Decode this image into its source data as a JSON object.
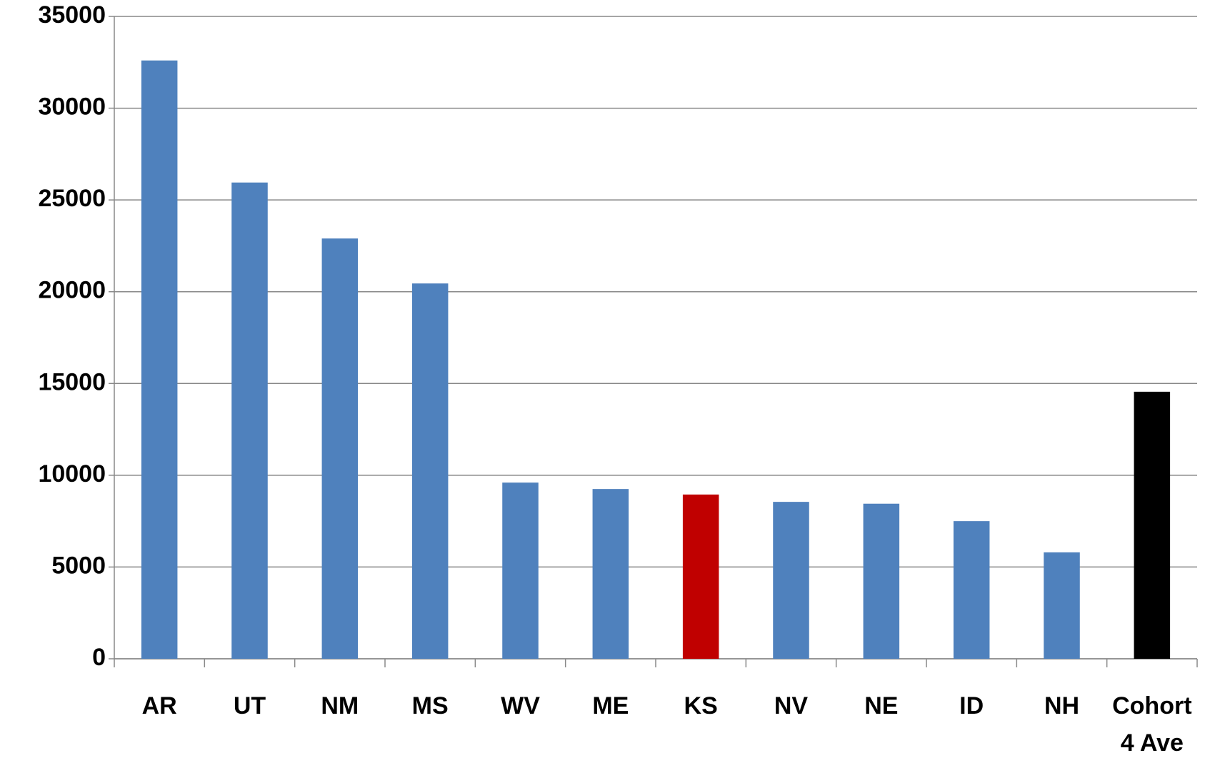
{
  "chart_data": {
    "type": "bar",
    "categories": [
      "AR",
      "UT",
      "NM",
      "MS",
      "WV",
      "ME",
      "KS",
      "NV",
      "NE",
      "ID",
      "NH",
      "Cohort 4 Ave"
    ],
    "values": [
      32600,
      25950,
      22900,
      20450,
      9600,
      9250,
      8950,
      8550,
      8450,
      7500,
      5800,
      14550
    ],
    "colors": [
      "#4f81bd",
      "#4f81bd",
      "#4f81bd",
      "#4f81bd",
      "#4f81bd",
      "#4f81bd",
      "#c00000",
      "#4f81bd",
      "#4f81bd",
      "#4f81bd",
      "#4f81bd",
      "#000000"
    ],
    "ylim": [
      0,
      35000
    ],
    "yticks": [
      0,
      5000,
      10000,
      15000,
      20000,
      25000,
      30000,
      35000
    ],
    "grid": true
  }
}
